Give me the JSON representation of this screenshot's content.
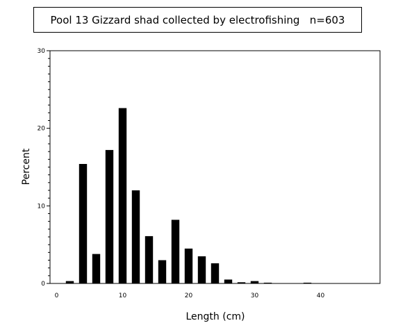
{
  "chart_data": {
    "type": "bar",
    "title": "Pool 13 Gizzard shad collected by electrofishing   n=603",
    "xlabel": "Length (cm)",
    "ylabel": "Percent",
    "xlim": [
      -1,
      49
    ],
    "ylim": [
      0,
      30
    ],
    "xticks": [
      0,
      10,
      20,
      30,
      40
    ],
    "yticks": [
      0,
      10,
      20,
      30
    ],
    "x": [
      2,
      4,
      6,
      8,
      10,
      12,
      14,
      16,
      18,
      20,
      22,
      24,
      26,
      28,
      30,
      32,
      38
    ],
    "values": [
      0.3,
      15.4,
      3.8,
      17.2,
      22.6,
      12.0,
      6.1,
      3.0,
      8.2,
      4.5,
      3.5,
      2.6,
      0.5,
      0.15,
      0.3,
      0.1,
      0.1
    ],
    "bar_width": 1.2,
    "grid": false,
    "bar_color": "#000000"
  }
}
